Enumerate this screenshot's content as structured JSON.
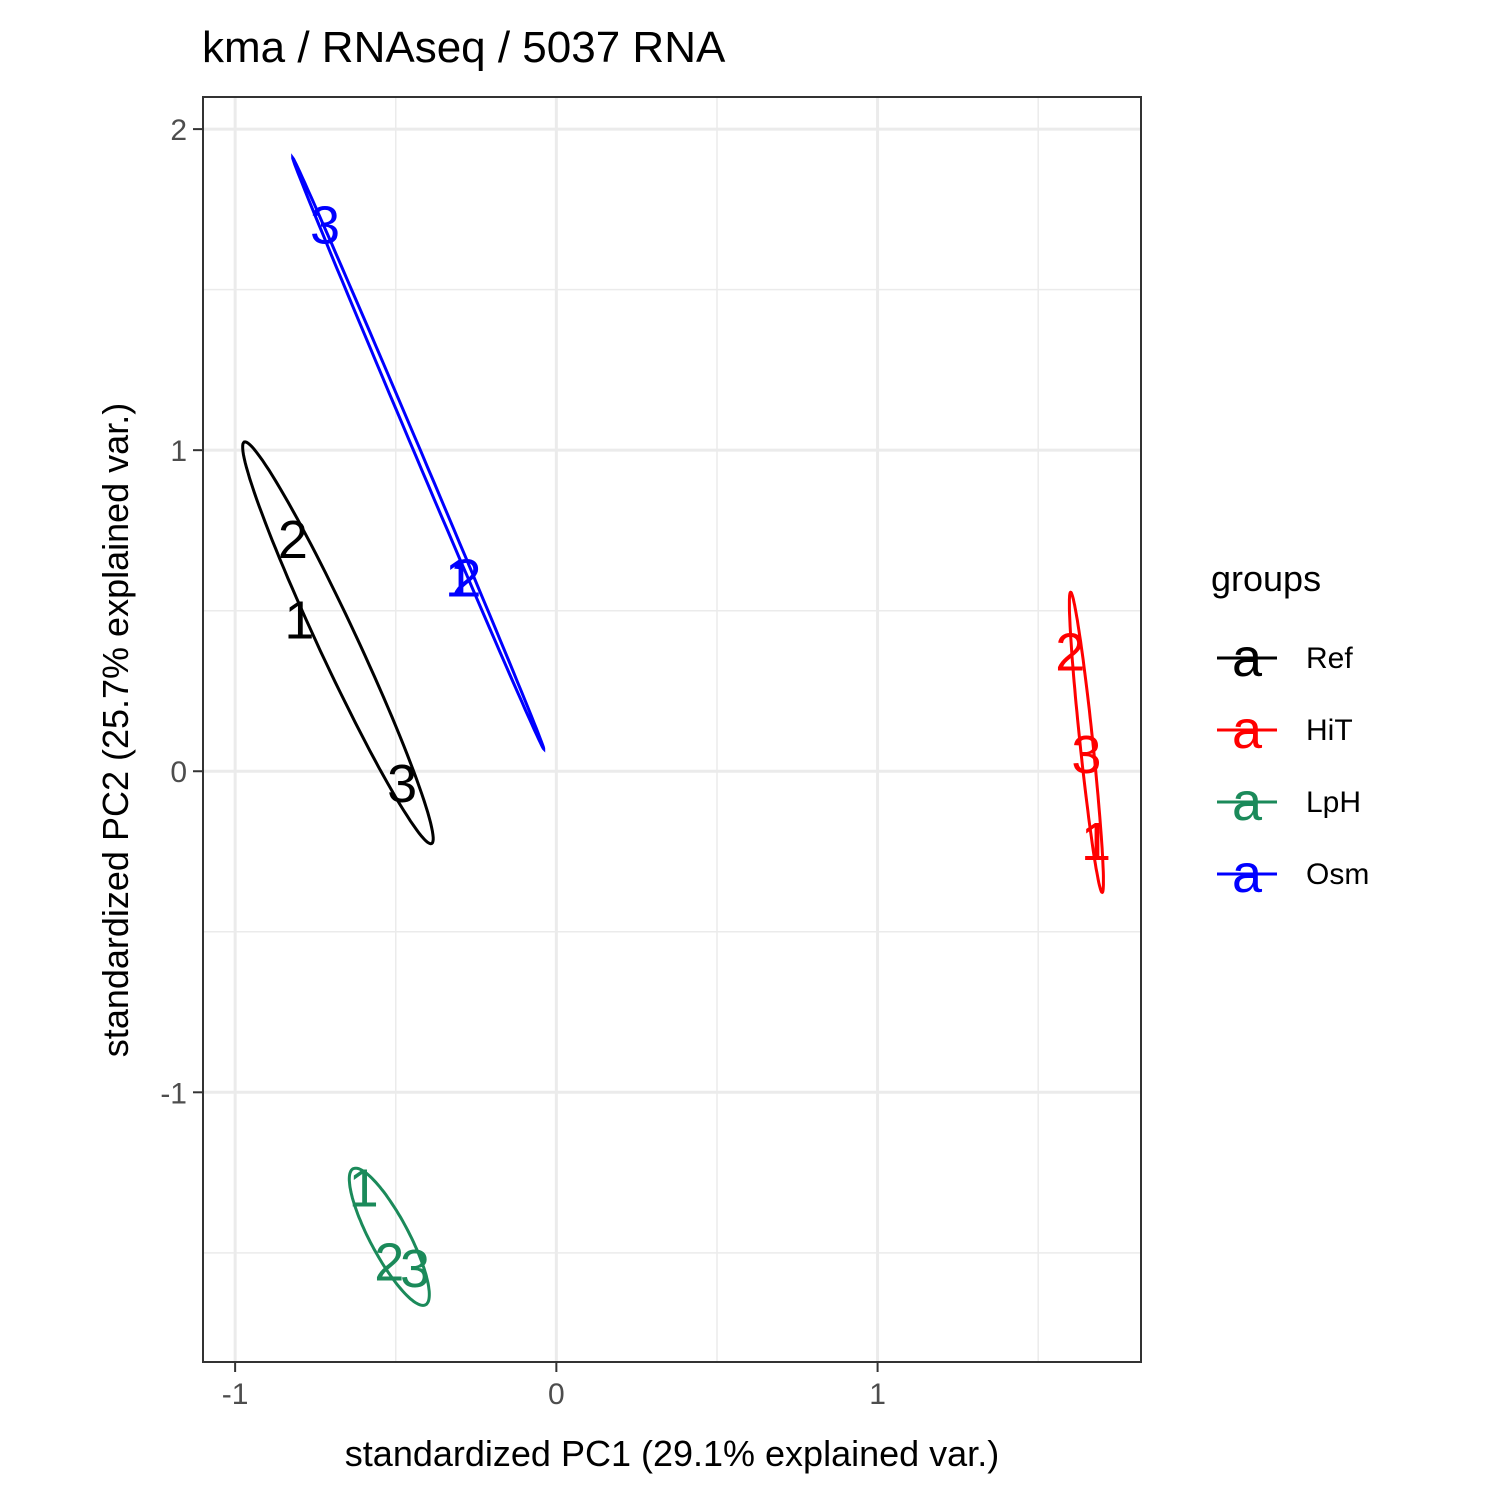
{
  "chart_data": {
    "type": "scatter",
    "title": "kma / RNAseq / 5037  RNA",
    "xlabel": "standardized PC1 (29.1% explained var.)",
    "ylabel": "standardized PC2 (25.7% explained var.)",
    "xlim": [
      -1.1,
      1.82
    ],
    "ylim": [
      -1.84,
      2.1
    ],
    "x_ticks": [
      -1,
      0,
      1
    ],
    "x_tick_labels": [
      "-1",
      "0",
      "1"
    ],
    "y_ticks": [
      -1,
      0,
      1,
      2
    ],
    "y_tick_labels": [
      "-1",
      "0",
      "1",
      "2"
    ],
    "x_minor_gridlines": [
      -0.5,
      0.5,
      1.5
    ],
    "y_minor_gridlines": [
      -1.5,
      -0.5,
      0.5,
      1.5
    ],
    "grid": true,
    "legend": {
      "title": "groups",
      "position": "right",
      "key_glyph": "a"
    },
    "series": [
      {
        "name": "Ref",
        "color": "#000000",
        "points": [
          {
            "label": "1",
            "x": -0.8,
            "y": 0.47
          },
          {
            "label": "2",
            "x": -0.82,
            "y": 0.72
          },
          {
            "label": "3",
            "x": -0.48,
            "y": -0.04
          }
        ],
        "ellipse": {
          "center": [
            -0.68,
            0.4
          ],
          "semi_major": 0.69,
          "semi_minor": 0.06,
          "angle_deg": 115
        }
      },
      {
        "name": "HiT",
        "color": "#ff0000",
        "points": [
          {
            "label": "1",
            "x": 1.68,
            "y": -0.22
          },
          {
            "label": "2",
            "x": 1.6,
            "y": 0.37
          },
          {
            "label": "3",
            "x": 1.65,
            "y": 0.05
          }
        ],
        "ellipse": {
          "center": [
            1.65,
            0.09
          ],
          "semi_major": 0.47,
          "semi_minor": 0.02,
          "angle_deg": 96
        }
      },
      {
        "name": "LpH",
        "color": "#1b8a5a",
        "points": [
          {
            "label": "1",
            "x": -0.6,
            "y": -1.3
          },
          {
            "label": "2",
            "x": -0.52,
            "y": -1.53
          },
          {
            "label": "3",
            "x": -0.44,
            "y": -1.55
          }
        ],
        "ellipse": {
          "center": [
            -0.52,
            -1.45
          ],
          "semi_major": 0.24,
          "semi_minor": 0.06,
          "angle_deg": 118
        }
      },
      {
        "name": "Osm",
        "color": "#0000ff",
        "points": [
          {
            "label": "1",
            "x": -0.3,
            "y": 0.6
          },
          {
            "label": "2",
            "x": -0.28,
            "y": 0.6
          },
          {
            "label": "3",
            "x": -0.72,
            "y": 1.7
          }
        ],
        "ellipse": {
          "center": [
            -0.43,
            0.99
          ],
          "semi_major": 1.0,
          "semi_minor": 0.01,
          "angle_deg": 113
        }
      }
    ]
  }
}
